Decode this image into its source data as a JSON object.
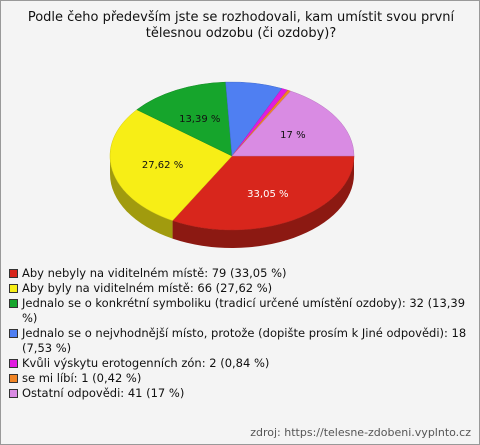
{
  "chart_data": {
    "type": "pie3d",
    "title": "Podle čeho především jste se rozhodovali, kam umístit svou první tělesnou odzobu (či ozdoby)?",
    "categories": [
      "Aby nebyly na viditelném místě: 79 (33,05 %)",
      "Aby byly na viditelném místě: 66 (27,62 %)",
      "Jednalo se o konkrétní symboliku (tradicí určené umístění ozdoby): 32 (13,39 %)",
      "Jednalo se o nejvhodnější místo, protože (dopište prosím k Jiné odpovědi): 18 (7,53 %)",
      "Kvůli výskytu erotogenních zón: 2 (0,84 %)",
      "se mi líbí: 1 (0,42 %)",
      "Ostatní odpovědi: 41 (17 %)"
    ],
    "values": [
      33.05,
      27.62,
      13.39,
      7.53,
      0.84,
      0.42,
      17
    ],
    "value_labels": [
      "33,05 %",
      "27,62 %",
      "13,39 %",
      null,
      null,
      null,
      "17 %"
    ],
    "colors": [
      "#d8261c",
      "#f7ee16",
      "#16a52c",
      "#4f7ff2",
      "#e11ce0",
      "#f08424",
      "#d98be3"
    ],
    "source": "zdroj: https://telesne-zdobeni.vyplnto.cz"
  }
}
